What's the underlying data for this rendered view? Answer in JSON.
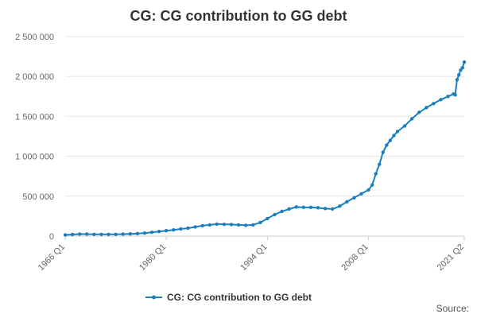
{
  "chart_data": {
    "type": "line",
    "title": "CG: CG contribution to GG debt",
    "xlabel": "",
    "ylabel": "",
    "x_tick_labels": [
      "1966 Q1",
      "1980 Q1",
      "1994 Q1",
      "2008 Q1",
      "2021 Q2"
    ],
    "y_tick_labels": [
      "0",
      "500 000",
      "1 000 000",
      "1 500 000",
      "2 000 000",
      "2 500 000"
    ],
    "y_ticks": [
      0,
      500000,
      1000000,
      1500000,
      2000000,
      2500000
    ],
    "ylim": [
      0,
      2500000
    ],
    "xlim": [
      "1966 Q1",
      "2021 Q2"
    ],
    "grid": true,
    "legend_position": "bottom",
    "series": [
      {
        "name": "CG: CG contribution to GG debt",
        "color": "#1a7fbf",
        "points": [
          [
            "1966 Q1",
            15000
          ],
          [
            "1967 Q1",
            20000
          ],
          [
            "1968 Q1",
            25000
          ],
          [
            "1969 Q1",
            25000
          ],
          [
            "1970 Q1",
            22000
          ],
          [
            "1971 Q1",
            22000
          ],
          [
            "1972 Q1",
            22000
          ],
          [
            "1973 Q1",
            22000
          ],
          [
            "1974 Q1",
            25000
          ],
          [
            "1975 Q1",
            28000
          ],
          [
            "1976 Q1",
            32000
          ],
          [
            "1977 Q1",
            38000
          ],
          [
            "1978 Q1",
            48000
          ],
          [
            "1979 Q1",
            58000
          ],
          [
            "1980 Q1",
            68000
          ],
          [
            "1981 Q1",
            78000
          ],
          [
            "1982 Q1",
            90000
          ],
          [
            "1983 Q1",
            100000
          ],
          [
            "1984 Q1",
            115000
          ],
          [
            "1985 Q1",
            130000
          ],
          [
            "1986 Q1",
            140000
          ],
          [
            "1987 Q1",
            150000
          ],
          [
            "1988 Q1",
            148000
          ],
          [
            "1989 Q1",
            145000
          ],
          [
            "1990 Q1",
            140000
          ],
          [
            "1991 Q1",
            135000
          ],
          [
            "1992 Q1",
            140000
          ],
          [
            "1993 Q1",
            170000
          ],
          [
            "1994 Q1",
            220000
          ],
          [
            "1995 Q1",
            270000
          ],
          [
            "1996 Q1",
            310000
          ],
          [
            "1997 Q1",
            340000
          ],
          [
            "1998 Q1",
            365000
          ],
          [
            "1999 Q1",
            360000
          ],
          [
            "2000 Q1",
            360000
          ],
          [
            "2001 Q1",
            355000
          ],
          [
            "2002 Q1",
            345000
          ],
          [
            "2003 Q1",
            340000
          ],
          [
            "2004 Q1",
            375000
          ],
          [
            "2005 Q1",
            430000
          ],
          [
            "2006 Q1",
            480000
          ],
          [
            "2007 Q1",
            530000
          ],
          [
            "2008 Q1",
            580000
          ],
          [
            "2008 Q3",
            640000
          ],
          [
            "2009 Q1",
            780000
          ],
          [
            "2009 Q3",
            900000
          ],
          [
            "2010 Q1",
            1050000
          ],
          [
            "2010 Q3",
            1140000
          ],
          [
            "2011 Q1",
            1200000
          ],
          [
            "2011 Q3",
            1260000
          ],
          [
            "2012 Q1",
            1310000
          ],
          [
            "2013 Q1",
            1380000
          ],
          [
            "2014 Q1",
            1470000
          ],
          [
            "2015 Q1",
            1550000
          ],
          [
            "2016 Q1",
            1610000
          ],
          [
            "2017 Q1",
            1660000
          ],
          [
            "2018 Q1",
            1710000
          ],
          [
            "2019 Q1",
            1750000
          ],
          [
            "2019 Q4",
            1780000
          ],
          [
            "2020 Q1",
            1770000
          ],
          [
            "2020 Q2",
            1960000
          ],
          [
            "2020 Q3",
            2020000
          ],
          [
            "2020 Q4",
            2080000
          ],
          [
            "2021 Q1",
            2110000
          ],
          [
            "2021 Q2",
            2180000
          ]
        ]
      }
    ]
  },
  "footer": {
    "source_label": "Source:"
  }
}
